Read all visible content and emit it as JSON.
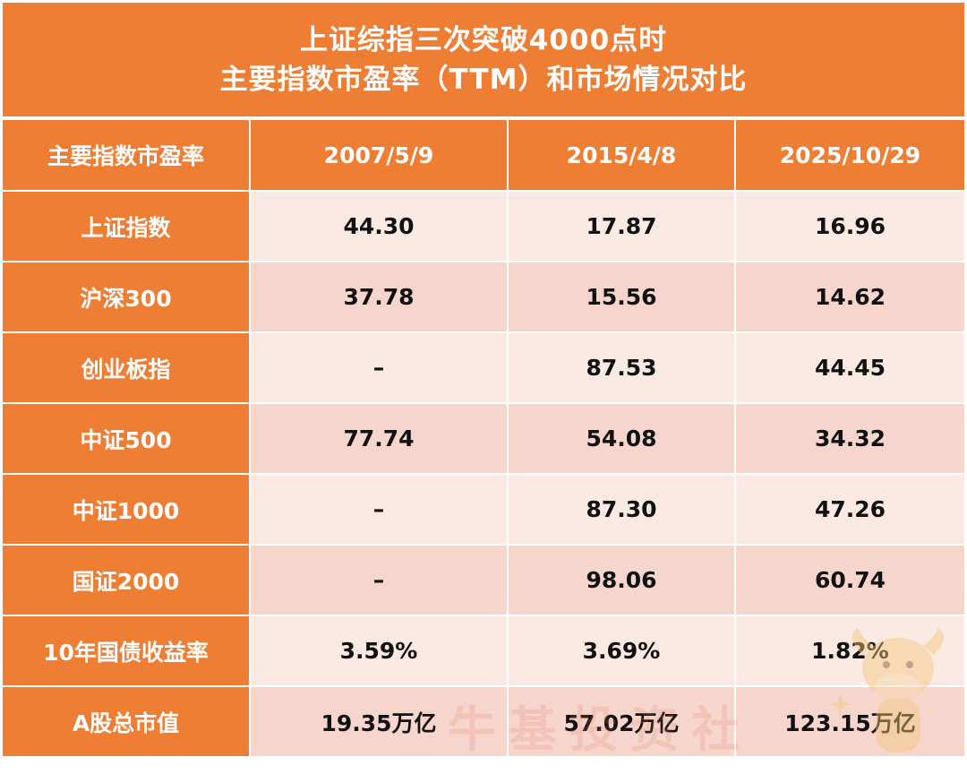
{
  "title": {
    "line1": "上证综指三次突破4000点时",
    "line2": "主要指数市盈率（TTM）和市场情况对比"
  },
  "header": {
    "corner": "主要指数市盈率",
    "dates": [
      "2007/5/9",
      "2015/4/8",
      "2025/10/29"
    ]
  },
  "rows": [
    {
      "name": "上证指数",
      "values": [
        "44.30",
        "17.87",
        "16.96"
      ]
    },
    {
      "name": "沪深300",
      "values": [
        "37.78",
        "15.56",
        "14.62"
      ]
    },
    {
      "name": "创业板指",
      "values": [
        "–",
        "87.53",
        "44.45"
      ]
    },
    {
      "name": "中证500",
      "values": [
        "77.74",
        "54.08",
        "34.32"
      ]
    },
    {
      "name": "中证1000",
      "values": [
        "–",
        "87.30",
        "47.26"
      ]
    },
    {
      "name": "国证2000",
      "values": [
        "–",
        "98.06",
        "60.74"
      ]
    },
    {
      "name": "10年国债收益率",
      "values": [
        "3.59%",
        "3.69%",
        "1.82%"
      ]
    },
    {
      "name": "A股总市值",
      "values": [
        "19.35万亿",
        "57.02万亿",
        "123.15万亿"
      ]
    }
  ],
  "watermark": "牛基投资社",
  "colors": {
    "header_orange": "#ee7e34",
    "row_light": "#fbe9e4",
    "row_dark": "#f6d5cd"
  },
  "chart_data": {
    "type": "table",
    "title": "上证综指三次突破4000点时 主要指数市盈率（TTM）和市场情况对比",
    "columns": [
      "主要指数市盈率",
      "2007/5/9",
      "2015/4/8",
      "2025/10/29"
    ],
    "rows": [
      [
        "上证指数",
        "44.30",
        "17.87",
        "16.96"
      ],
      [
        "沪深300",
        "37.78",
        "15.56",
        "14.62"
      ],
      [
        "创业板指",
        "–",
        "87.53",
        "44.45"
      ],
      [
        "中证500",
        "77.74",
        "54.08",
        "34.32"
      ],
      [
        "中证1000",
        "–",
        "87.30",
        "47.26"
      ],
      [
        "国证2000",
        "–",
        "98.06",
        "60.74"
      ],
      [
        "10年国债收益率",
        "3.59%",
        "3.69%",
        "1.82%"
      ],
      [
        "A股总市值",
        "19.35万亿",
        "57.02万亿",
        "123.15万亿"
      ]
    ]
  }
}
